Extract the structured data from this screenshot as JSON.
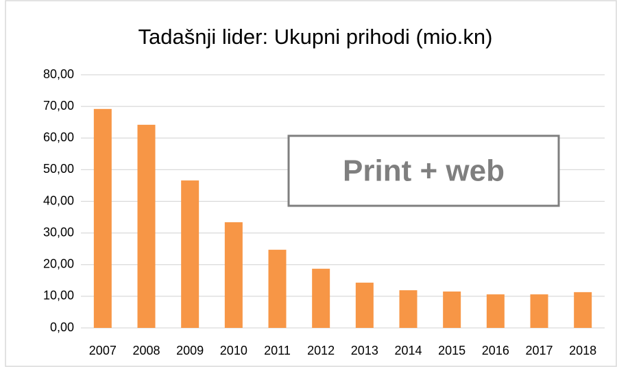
{
  "chart_data": {
    "type": "bar",
    "title": "Tadašnji lider: Ukupni prihodi (mio.kn)",
    "categories": [
      "2007",
      "2008",
      "2009",
      "2010",
      "2011",
      "2012",
      "2013",
      "2014",
      "2015",
      "2016",
      "2017",
      "2018"
    ],
    "values": [
      69.2,
      64.2,
      46.6,
      33.4,
      24.7,
      18.7,
      14.3,
      11.9,
      11.5,
      10.6,
      10.6,
      11.3
    ],
    "color": "#f79646",
    "ylim": [
      0,
      80
    ],
    "yticks": [
      {
        "value": 0,
        "label": "0,00"
      },
      {
        "value": 10,
        "label": "10,00"
      },
      {
        "value": 20,
        "label": "20,00"
      },
      {
        "value": 30,
        "label": "30,00"
      },
      {
        "value": 40,
        "label": "40,00"
      },
      {
        "value": 50,
        "label": "50,00"
      },
      {
        "value": 60,
        "label": "60,00"
      },
      {
        "value": 70,
        "label": "70,00"
      },
      {
        "value": 80,
        "label": "80,00"
      }
    ],
    "grid": true,
    "annotation": "Print + web"
  }
}
